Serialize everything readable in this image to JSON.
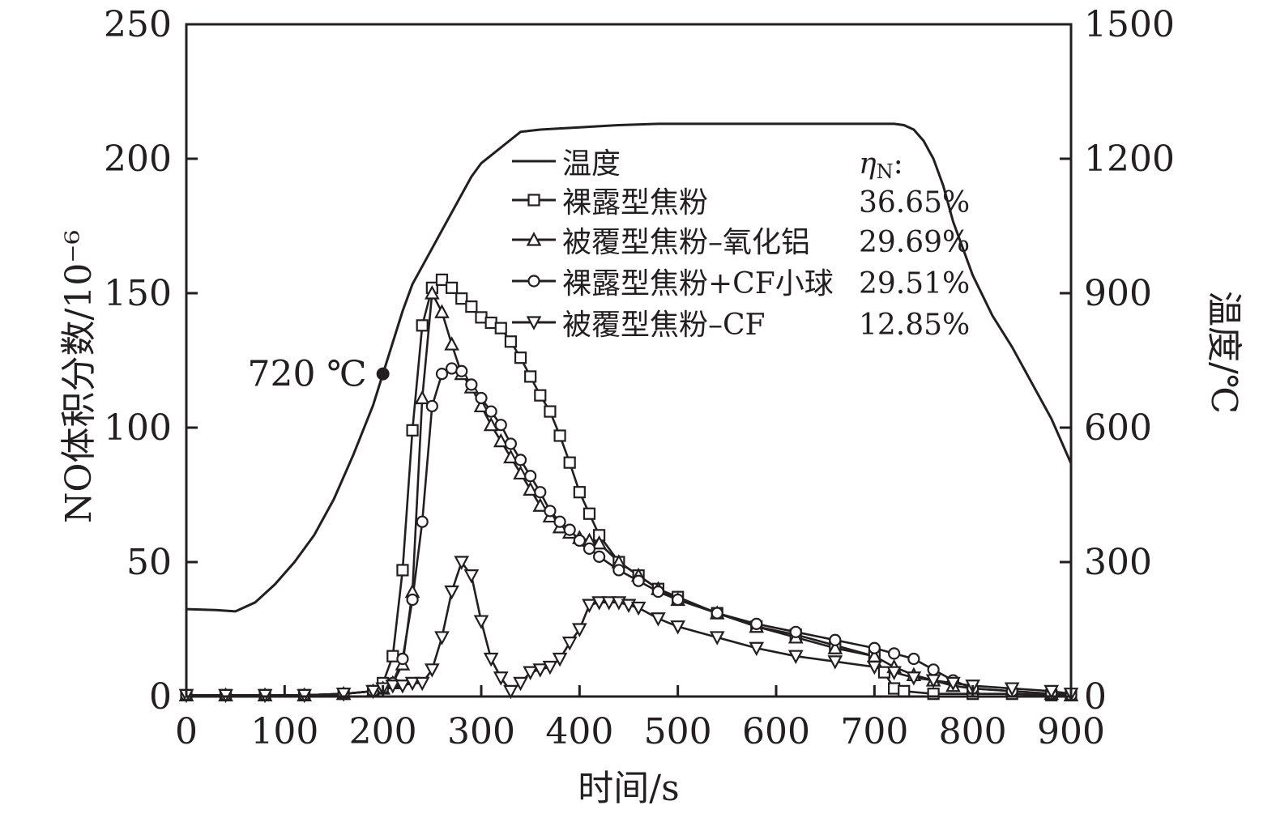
{
  "chart_data": {
    "type": "line",
    "xlabel": "时间/s",
    "ylabel_left": "NO体积分数/10⁻⁶",
    "ylabel_right": "温度/℃",
    "xlim": [
      0,
      900
    ],
    "ylim_left": [
      0,
      250
    ],
    "ylim_right": [
      0,
      1500
    ],
    "x_ticks": [
      0,
      100,
      200,
      300,
      400,
      500,
      600,
      700,
      800,
      900
    ],
    "y_left_ticks": [
      0,
      50,
      100,
      150,
      200,
      250
    ],
    "y_right_ticks": [
      0,
      300,
      600,
      900,
      1200,
      1500
    ],
    "grid": false,
    "legend_position": "top-center",
    "legend_header": "η",
    "legend_header_sub": "N",
    "legend_header_suffix": ":",
    "annotation": {
      "text": "720 ℃",
      "x": 200,
      "y_temp": 720
    },
    "temperature": {
      "name": "温度",
      "axis": "right",
      "x": [
        0,
        30,
        50,
        70,
        90,
        110,
        130,
        150,
        170,
        190,
        200,
        210,
        220,
        230,
        240,
        250,
        260,
        270,
        280,
        290,
        300,
        320,
        340,
        360,
        400,
        440,
        480,
        520,
        560,
        600,
        640,
        680,
        700,
        720,
        730,
        740,
        750,
        760,
        770,
        780,
        800,
        820,
        840,
        860,
        880,
        900
      ],
      "y": [
        195,
        193,
        190,
        210,
        250,
        300,
        360,
        440,
        540,
        650,
        720,
        790,
        860,
        920,
        960,
        1000,
        1040,
        1080,
        1120,
        1160,
        1190,
        1225,
        1260,
        1265,
        1270,
        1275,
        1278,
        1278,
        1278,
        1278,
        1278,
        1278,
        1278,
        1278,
        1275,
        1265,
        1240,
        1200,
        1140,
        1060,
        940,
        850,
        780,
        700,
        620,
        520
      ]
    },
    "series": [
      {
        "name": "裸露型焦粉",
        "eta": "36.65%",
        "marker": "square",
        "x": [
          0,
          40,
          80,
          120,
          160,
          190,
          200,
          210,
          220,
          230,
          240,
          250,
          260,
          270,
          280,
          290,
          300,
          310,
          320,
          330,
          340,
          350,
          360,
          370,
          380,
          390,
          400,
          410,
          420,
          440,
          460,
          480,
          500,
          540,
          580,
          620,
          660,
          700,
          710,
          720,
          730,
          760,
          800,
          840,
          880,
          900
        ],
        "y": [
          0.5,
          0.5,
          0.5,
          0.5,
          1,
          2,
          5,
          15,
          47,
          99,
          138,
          152,
          155,
          152,
          148,
          145,
          141,
          139,
          137,
          132,
          126,
          119,
          112,
          106,
          97,
          87,
          76,
          68,
          60,
          50,
          45,
          40,
          37,
          31,
          26,
          23,
          19,
          15,
          9,
          3,
          2,
          1,
          1,
          1,
          0.5,
          0.5
        ]
      },
      {
        "name": "被覆型焦粉–氧化铝",
        "eta": "29.69%",
        "marker": "triangle-up",
        "x": [
          0,
          40,
          80,
          120,
          160,
          190,
          200,
          210,
          220,
          230,
          240,
          250,
          260,
          270,
          280,
          290,
          300,
          310,
          320,
          330,
          340,
          350,
          360,
          370,
          380,
          390,
          400,
          410,
          420,
          440,
          460,
          480,
          500,
          540,
          580,
          620,
          660,
          700,
          720,
          740,
          760,
          780,
          800,
          840,
          880,
          900
        ],
        "y": [
          0.5,
          0.5,
          0.5,
          0.5,
          1,
          2,
          3,
          5,
          12,
          39,
          111,
          150,
          143,
          131,
          120,
          115,
          108,
          101,
          95,
          89,
          83,
          77,
          71,
          67,
          63,
          61,
          59,
          58,
          57,
          50,
          45,
          40,
          36,
          31,
          26,
          22,
          18,
          15,
          11,
          8,
          6,
          4,
          3,
          2,
          1,
          0.5
        ]
      },
      {
        "name": "裸露型焦粉+CF小球",
        "eta": "29.51%",
        "marker": "circle",
        "x": [
          0,
          40,
          80,
          120,
          160,
          190,
          200,
          210,
          220,
          230,
          240,
          250,
          260,
          270,
          280,
          290,
          300,
          310,
          320,
          330,
          340,
          350,
          360,
          370,
          380,
          390,
          400,
          410,
          420,
          440,
          460,
          480,
          500,
          540,
          580,
          620,
          660,
          700,
          720,
          740,
          760,
          780,
          800,
          840,
          880,
          900
        ],
        "y": [
          0.5,
          0.5,
          0.5,
          0.5,
          1,
          2,
          3,
          5,
          14,
          36,
          65,
          108,
          120,
          122,
          121,
          116,
          111,
          106,
          101,
          94,
          88,
          82,
          76,
          69,
          65,
          62,
          58,
          55,
          52,
          47,
          43,
          39,
          36,
          31,
          27,
          24,
          21,
          18,
          16,
          14,
          10,
          6,
          3,
          2,
          1,
          0.5
        ]
      },
      {
        "name": "被覆型焦粉–CF",
        "eta": "12.85%",
        "marker": "triangle-down",
        "x": [
          0,
          40,
          80,
          120,
          160,
          190,
          200,
          210,
          220,
          230,
          240,
          250,
          260,
          270,
          280,
          290,
          300,
          310,
          320,
          330,
          340,
          350,
          360,
          370,
          380,
          390,
          400,
          410,
          420,
          430,
          440,
          450,
          460,
          480,
          500,
          540,
          580,
          620,
          660,
          700,
          720,
          740,
          760,
          780,
          800,
          840,
          880,
          900
        ],
        "y": [
          0.5,
          0.5,
          0.5,
          0.5,
          1,
          2,
          3,
          4,
          4,
          5,
          5,
          10,
          22,
          39,
          50,
          45,
          28,
          14,
          7,
          2,
          5,
          9,
          10,
          11,
          14,
          20,
          25,
          34,
          35,
          35,
          35,
          34,
          33,
          29,
          26,
          22,
          18,
          15,
          13,
          11,
          9,
          7,
          6,
          5,
          4,
          3,
          2,
          1
        ]
      }
    ]
  }
}
